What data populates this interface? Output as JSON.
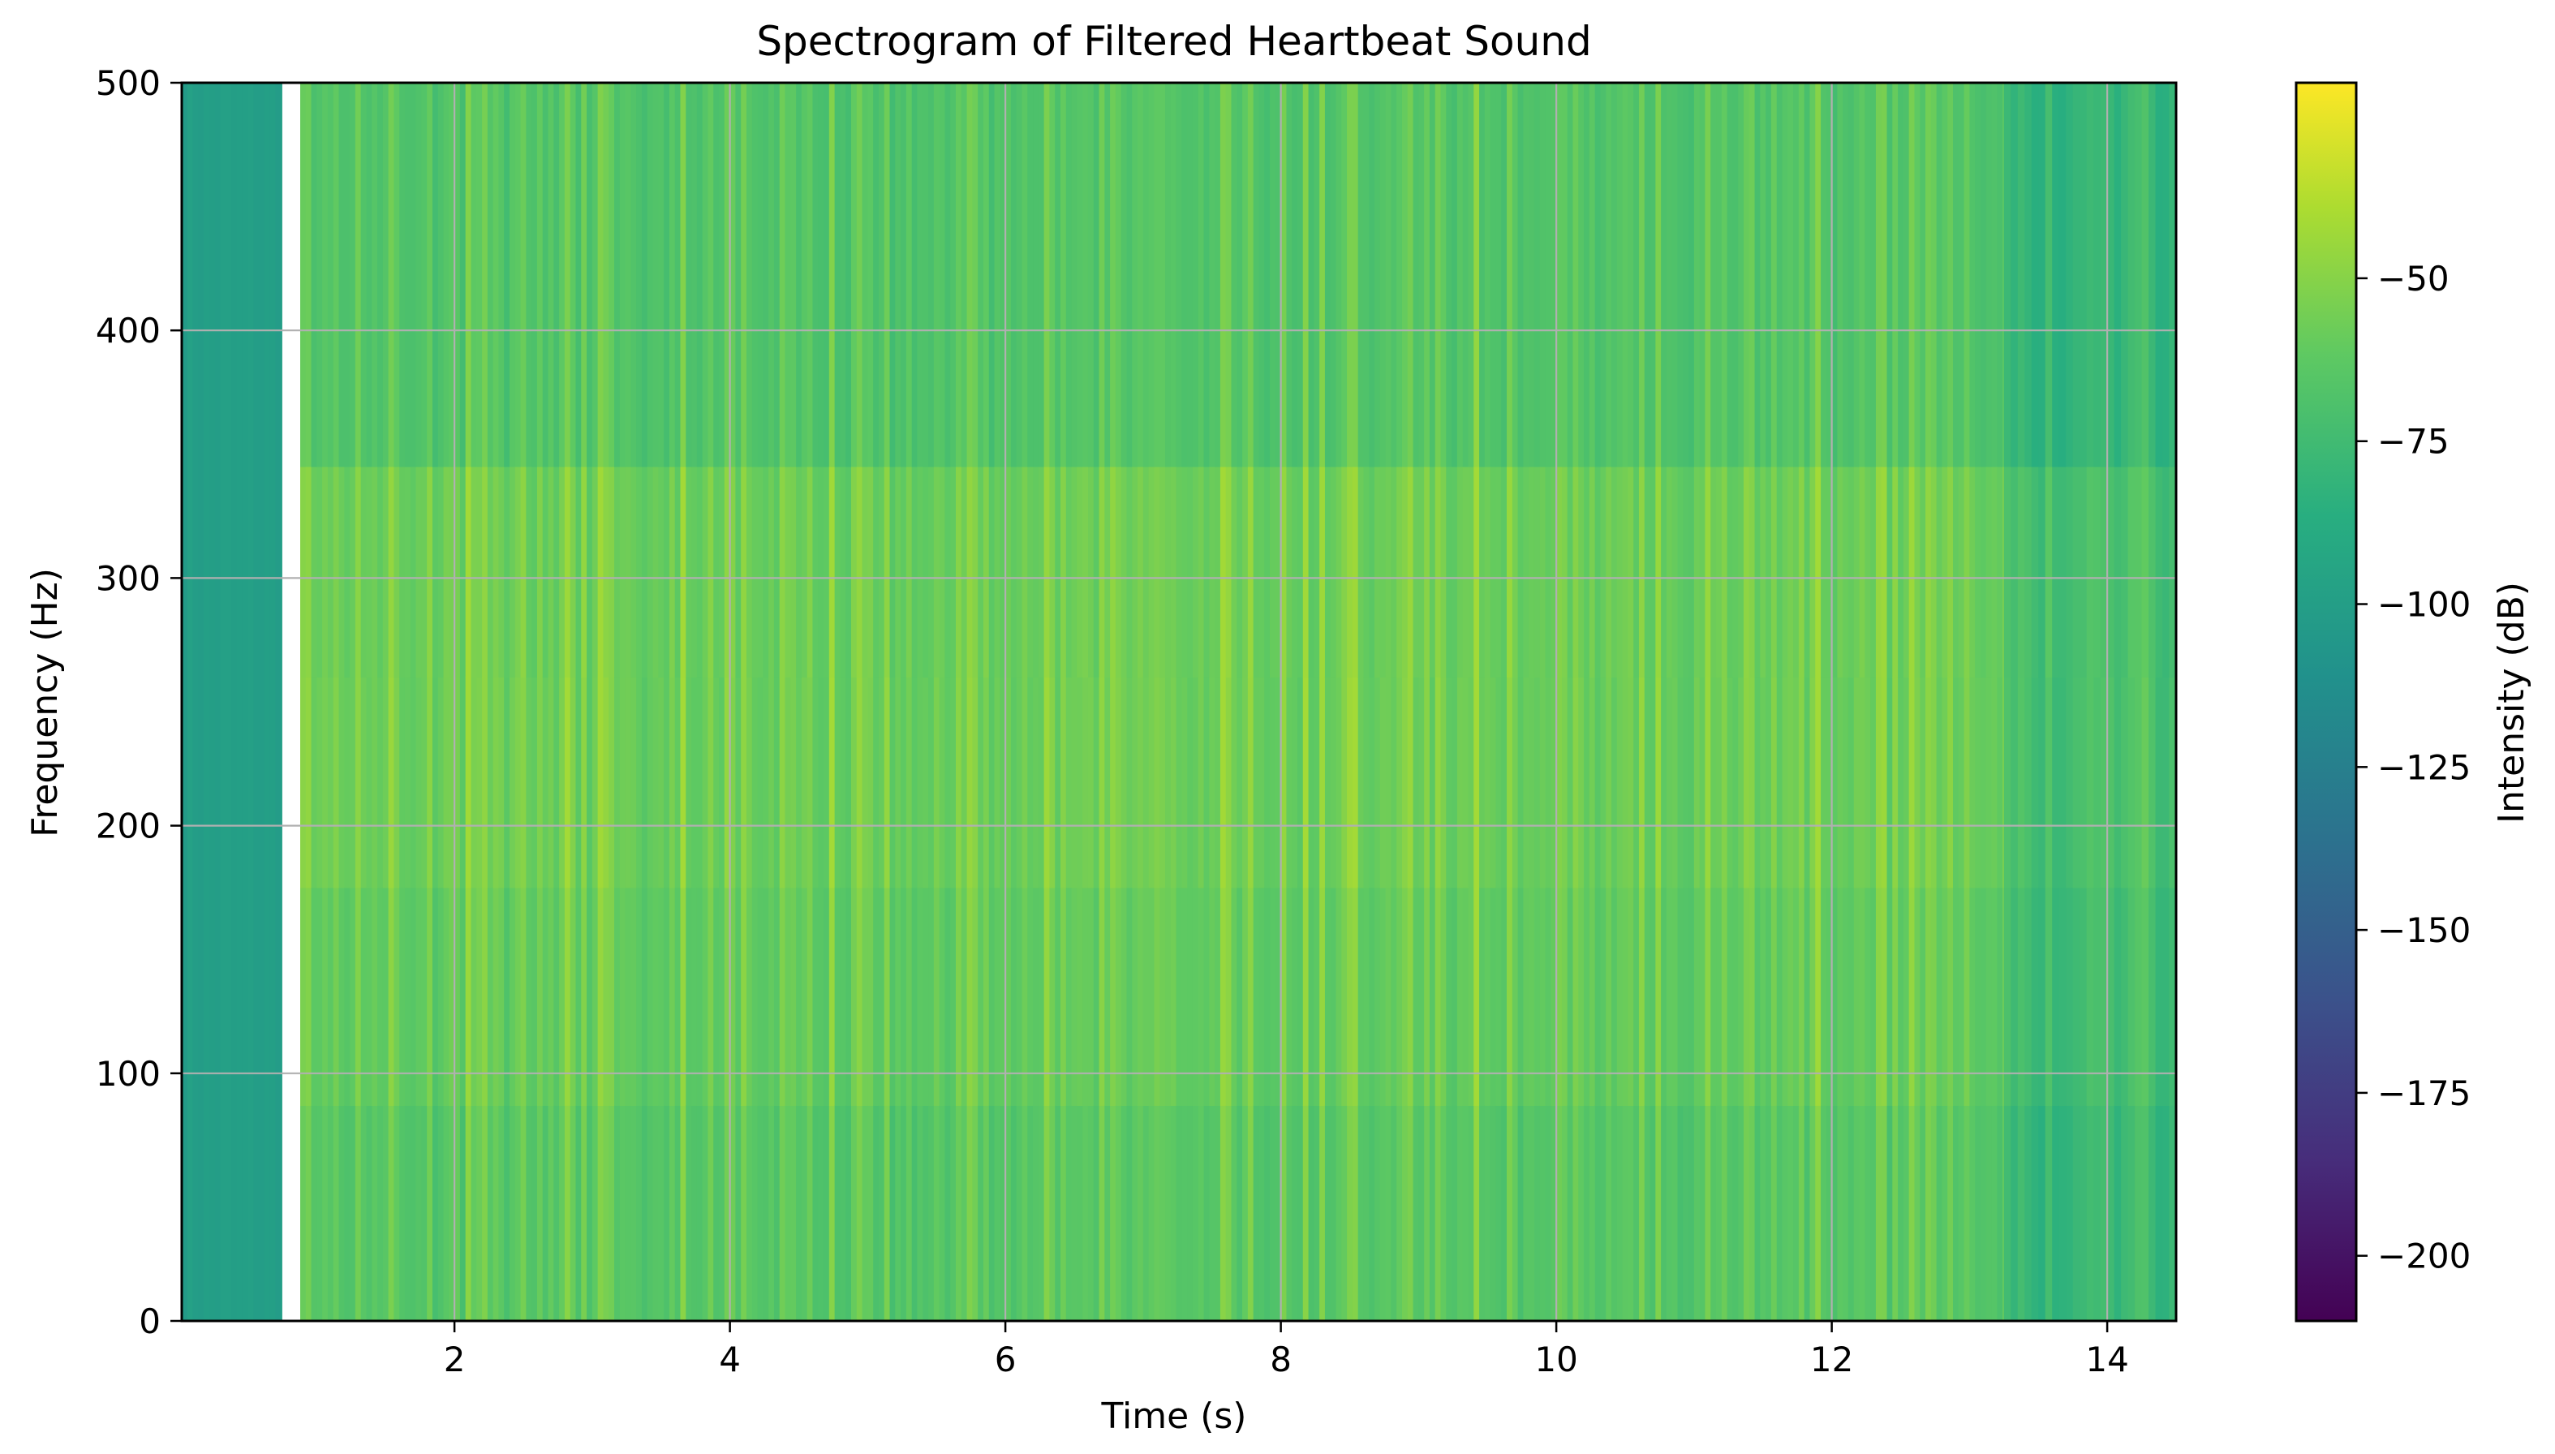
{
  "chart_data": {
    "type": "heatmap",
    "title": "Spectrogram of Filtered Heartbeat Sound",
    "xlabel": "Time (s)",
    "ylabel": "Frequency (Hz)",
    "xlim": [
      0.02,
      14.5
    ],
    "ylim": [
      0,
      500
    ],
    "xticks": [
      2,
      4,
      6,
      8,
      10,
      12,
      14
    ],
    "yticks": [
      0,
      100,
      200,
      300,
      400,
      500
    ],
    "grid": true,
    "gap": [
      0.75,
      0.88
    ],
    "colormap": "viridis",
    "colorbar": {
      "label": "Intensity (dB)",
      "range": [
        -210,
        -20
      ],
      "ticks": [
        -50,
        -75,
        -100,
        -125,
        -150,
        -175,
        -200
      ],
      "tick_labels": [
        "−50",
        "−75",
        "−100",
        "−125",
        "−150",
        "−175",
        "−200"
      ]
    },
    "intensity_summary": {
      "silent_segment": {
        "time": [
          0.02,
          0.75
        ],
        "level_db": -100
      },
      "active_segment": {
        "time": [
          0.88,
          13.25
        ],
        "level_db_range": [
          -80,
          -45
        ],
        "peak_band_hz": [
          175,
          345
        ]
      },
      "tail_segment": {
        "time": [
          13.25,
          14.5
        ],
        "level_db_range": [
          -95,
          -60
        ]
      }
    }
  }
}
